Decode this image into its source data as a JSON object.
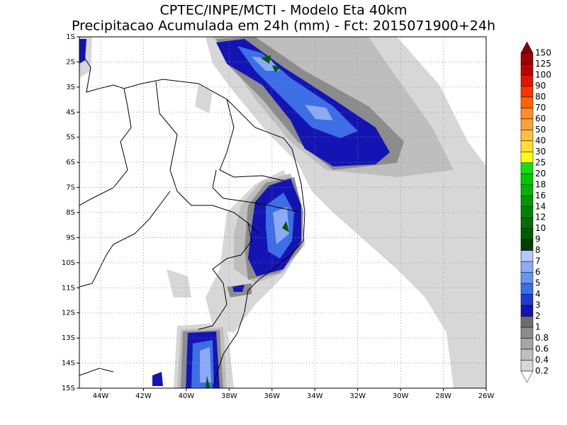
{
  "header": {
    "title": "CPTEC/INPE/MCTI - Modelo Eta 40km",
    "subtitle": "Precipitacao Acumulada em 24h (mm) - Fct: 2015071900+24h"
  },
  "map": {
    "x_labels": [
      "44W",
      "42W",
      "40W",
      "38W",
      "36W",
      "34W",
      "32W",
      "30W",
      "28W",
      "26W"
    ],
    "y_labels": [
      "1S",
      "2S",
      "3S",
      "4S",
      "5S",
      "6S",
      "7S",
      "8S",
      "9S",
      "10S",
      "11S",
      "12S",
      "13S",
      "14S",
      "15S"
    ]
  },
  "colorbar": {
    "labels": [
      "150",
      "125",
      "100",
      "90",
      "80",
      "70",
      "60",
      "50",
      "40",
      "30",
      "25",
      "20",
      "18",
      "16",
      "14",
      "12",
      "10",
      "9",
      "8",
      "7",
      "6",
      "5",
      "4",
      "3",
      "2",
      "1",
      "0.8",
      "0.6",
      "0.4",
      "0.2"
    ],
    "colors": [
      "#a00000",
      "#c00000",
      "#e11400",
      "#ff3200",
      "#ff6400",
      "#ff8c28",
      "#ffa03c",
      "#ffc03c",
      "#ffe032",
      "#fffa14",
      "#10e010",
      "#00c800",
      "#00b400",
      "#009600",
      "#008200",
      "#006e00",
      "#005a00",
      "#004000",
      "#b4c8ff",
      "#8caaf5",
      "#6496f0",
      "#3c6ee6",
      "#1e3cd2",
      "#1414b4",
      "#6e6e6e",
      "#8c8c8c",
      "#a5a5a5",
      "#bebebe",
      "#d7d7d7"
    ],
    "top_color": "#8c0000",
    "bottom_color": "#ffffff"
  }
}
